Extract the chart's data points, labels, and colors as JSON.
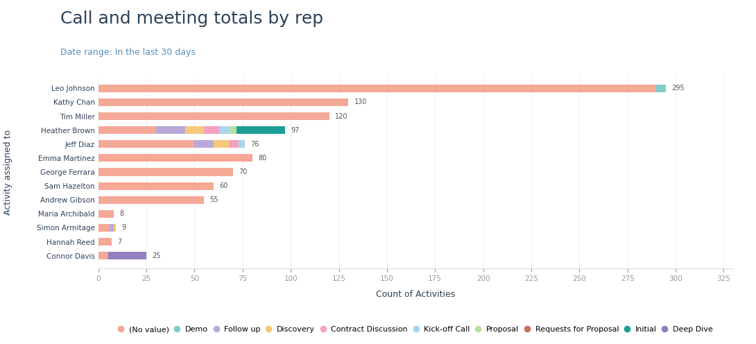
{
  "title": "Call and meeting totals by rep",
  "subtitle": "Date range: In the last 30 days",
  "xlabel": "Count of Activities",
  "ylabel": "Activity assigned to",
  "title_color": "#2d4159",
  "subtitle_color": "#5b8db8",
  "background_color": "#ffffff",
  "reps": [
    "Leo Johnson",
    "Kathy Chan",
    "Tim Miller",
    "Heather Brown",
    "Jeff Diaz",
    "Emma Martinez",
    "George Ferrara",
    "Sam Hazelton",
    "Andrew Gibson",
    "Maria Archibald",
    "Simon Armitage",
    "Hannah Reed",
    "Connor Davis"
  ],
  "categories": [
    "(No value)",
    "Demo",
    "Follow up",
    "Discovery",
    "Contract Discussion",
    "Kick-off Call",
    "Proposal",
    "Requests for Proposal",
    "Initial",
    "Deep Dive"
  ],
  "colors": [
    "#f4a896",
    "#7ececa",
    "#b8a9d9",
    "#f5c97a",
    "#f4a0c0",
    "#a8d4f0",
    "#b8e0a0",
    "#c87060",
    "#1a9e96",
    "#9080c0"
  ],
  "data": [
    [
      290,
      5,
      0,
      0,
      0,
      0,
      0,
      0,
      0,
      0
    ],
    [
      130,
      0,
      0,
      0,
      0,
      0,
      0,
      0,
      0,
      0
    ],
    [
      120,
      0,
      0,
      0,
      0,
      0,
      0,
      0,
      0,
      0
    ],
    [
      30,
      0,
      15,
      10,
      8,
      5,
      4,
      0,
      25,
      0
    ],
    [
      50,
      0,
      10,
      8,
      5,
      3,
      0,
      0,
      0,
      0
    ],
    [
      80,
      0,
      0,
      0,
      0,
      0,
      0,
      0,
      0,
      0
    ],
    [
      70,
      0,
      0,
      0,
      0,
      0,
      0,
      0,
      0,
      0
    ],
    [
      60,
      0,
      0,
      0,
      0,
      0,
      0,
      0,
      0,
      0
    ],
    [
      55,
      0,
      0,
      0,
      0,
      0,
      0,
      0,
      0,
      0
    ],
    [
      8,
      0,
      0,
      0,
      0,
      0,
      0,
      0,
      0,
      0
    ],
    [
      6,
      0,
      2,
      1,
      0,
      0,
      0,
      0,
      0,
      0
    ],
    [
      7,
      0,
      0,
      0,
      0,
      0,
      0,
      0,
      0,
      0
    ],
    [
      5,
      0,
      0,
      0,
      0,
      0,
      0,
      0,
      0,
      20
    ]
  ],
  "xlim": [
    0,
    330
  ],
  "xticks": [
    0,
    25,
    50,
    75,
    100,
    125,
    150,
    175,
    200,
    225,
    250,
    275,
    300,
    325
  ],
  "bar_height": 0.55,
  "figsize": [
    10.9,
    4.96
  ],
  "dpi": 100
}
